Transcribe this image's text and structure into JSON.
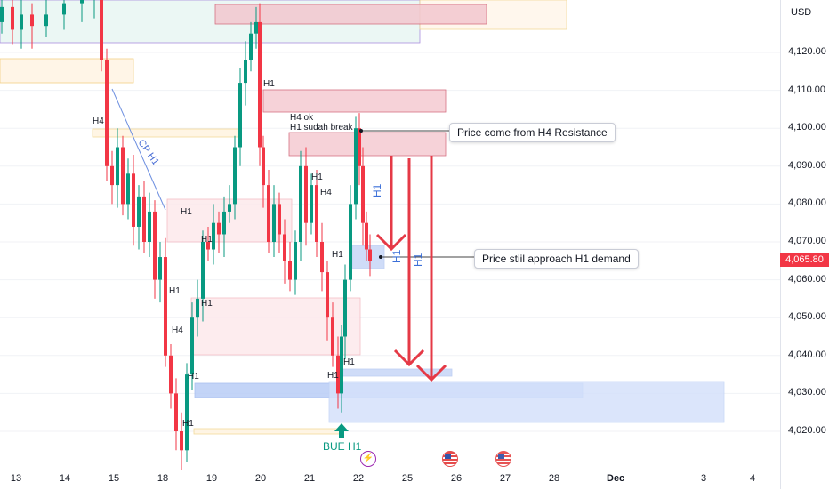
{
  "chart_data": {
    "type": "candlestick",
    "currency": "USD",
    "last_price": "4,065.80",
    "y_ticks": [
      "4,120.00",
      "4,110.00",
      "4,100.00",
      "4,090.00",
      "4,080.00",
      "4,070.00",
      "4,060.00",
      "4,050.00",
      "4,040.00",
      "4,030.00",
      "4,020.00"
    ],
    "x_ticks": [
      "13",
      "14",
      "15",
      "18",
      "19",
      "20",
      "21",
      "22",
      "25",
      "26",
      "27",
      "28",
      "Dec",
      "3",
      "4"
    ],
    "annotations": {
      "h4_resistance_note": "Price come from  H4 Resistance",
      "h1_demand_note": "Price stiil approach H1 demand",
      "bue_label": "BUE H1",
      "h4_ok": "H4 ok",
      "h1_sudah_break": "H1 sudah break",
      "cp_h1": "CP H1",
      "arrow_h1_a": "H1",
      "arrow_h1_b": "H1",
      "arrow_h1_c": "H1",
      "labels": [
        "H4",
        "H1",
        "H1",
        "H4",
        "H1",
        "H1",
        "H1",
        "H1",
        "H1",
        "H4",
        "H1",
        "H1",
        "H1",
        "H1"
      ]
    },
    "colors": {
      "up": "#089981",
      "down": "#f23645",
      "resistance_zone": "#f5c6cb",
      "demand_zone": "#c7d6f7",
      "arrow": "#e53946"
    },
    "events": [
      "lightning-event-icon",
      "us-flag-icon",
      "us-flag-icon"
    ]
  }
}
